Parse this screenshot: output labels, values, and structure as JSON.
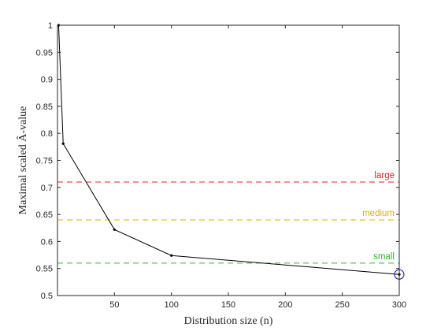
{
  "chart_data": {
    "type": "line",
    "xlabel": "Distribution size (n)",
    "ylabel": "Maximal scaled Â-value",
    "xlim": [
      0,
      300
    ],
    "ylim": [
      0.5,
      1.0
    ],
    "xticks": [
      50,
      100,
      150,
      200,
      250,
      300
    ],
    "xtick_labels": [
      "50",
      "100",
      "150",
      "200",
      "250",
      "300"
    ],
    "yticks": [
      0.5,
      0.55,
      0.6,
      0.65,
      0.7,
      0.75,
      0.8,
      0.85,
      0.9,
      0.95,
      1.0
    ],
    "ytick_labels": [
      "0.5",
      "0.55",
      "0.6",
      "0.65",
      "0.7",
      "0.75",
      "0.8",
      "0.85",
      "0.9",
      "0.95",
      "1"
    ],
    "grid": false,
    "series": [
      {
        "color": "#000000",
        "marker": "dot",
        "x": [
          1,
          5,
          50,
          100,
          300
        ],
        "y": [
          1.0,
          0.781,
          0.622,
          0.574,
          0.539
        ]
      }
    ],
    "highlight": {
      "x": 300,
      "y": 0.539,
      "color": "#0000cc",
      "shape": "circle"
    },
    "thresholds": [
      {
        "label": "large",
        "y": 0.71,
        "color": "#e02020"
      },
      {
        "label": "medium",
        "y": 0.64,
        "color": "#e0b000"
      },
      {
        "label": "small",
        "y": 0.56,
        "color": "#20c020"
      }
    ]
  }
}
